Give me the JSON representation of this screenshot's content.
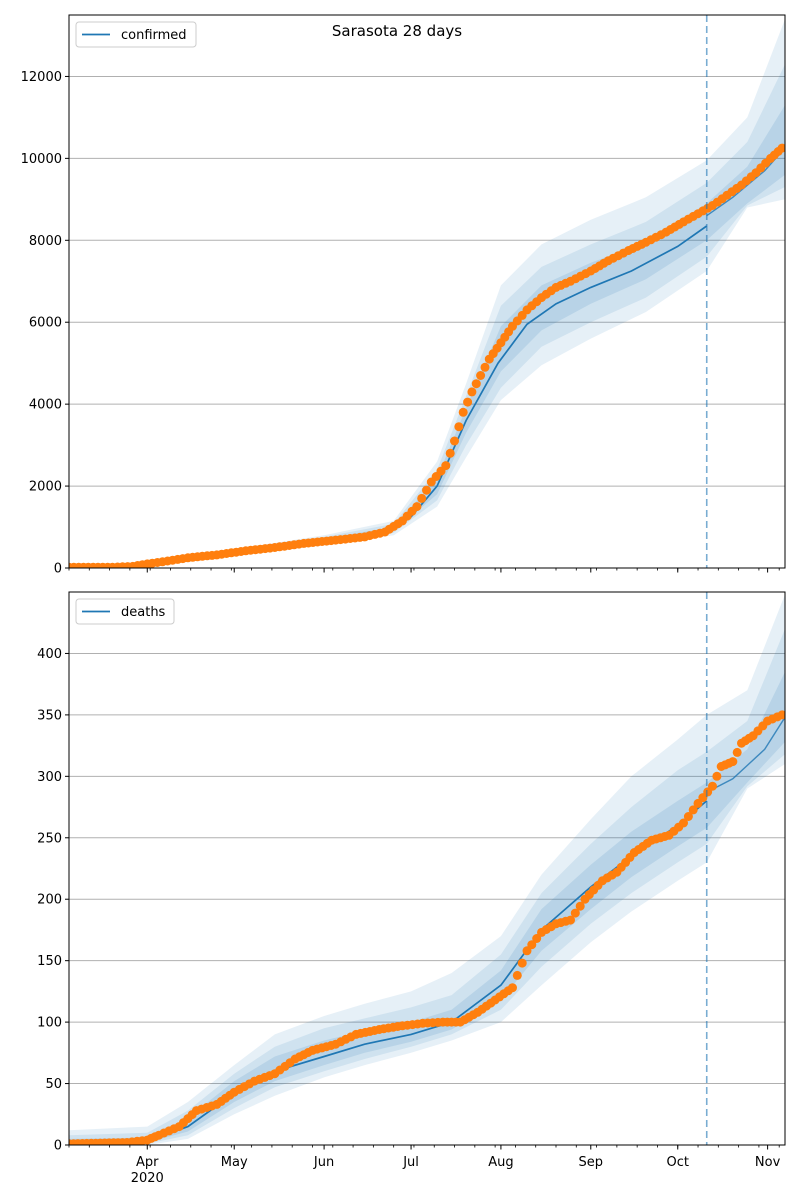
{
  "title": "Sarasota 28 days",
  "colors": {
    "model": "#1f77b4",
    "observed": "#ff7f0e",
    "grid": "#b0b0b0",
    "band": "#1f77b4"
  },
  "chart_data": [
    {
      "type": "line",
      "panel": "top",
      "title": "Sarasota 28 days",
      "legend": [
        "confirmed"
      ],
      "legend_loc": "upper-left",
      "grid": "y",
      "x_start": "2020-03-05",
      "x_end": "2020-11-07",
      "forecast_start": "2020-10-11",
      "x_tick_labels": [
        {
          "date": "2020-04-01",
          "label": "Apr",
          "sub": "2020"
        },
        {
          "date": "2020-05-01",
          "label": "May",
          "sub": ""
        },
        {
          "date": "2020-06-01",
          "label": "Jun",
          "sub": ""
        },
        {
          "date": "2020-07-01",
          "label": "Jul",
          "sub": ""
        },
        {
          "date": "2020-08-01",
          "label": "Aug",
          "sub": ""
        },
        {
          "date": "2020-09-01",
          "label": "Sep",
          "sub": ""
        },
        {
          "date": "2020-10-01",
          "label": "Oct",
          "sub": ""
        },
        {
          "date": "2020-11-01",
          "label": "Nov",
          "sub": ""
        }
      ],
      "ylim": [
        0,
        13500
      ],
      "y_ticks": [
        0,
        2000,
        4000,
        6000,
        8000,
        10000,
        12000
      ],
      "series": [
        {
          "name": "confirmed",
          "kind": "model-median",
          "x": [
            "2020-03-05",
            "2020-03-25",
            "2020-04-15",
            "2020-05-01",
            "2020-05-15",
            "2020-06-01",
            "2020-06-15",
            "2020-06-25",
            "2020-07-01",
            "2020-07-10",
            "2020-07-20",
            "2020-07-31",
            "2020-08-10",
            "2020-08-20",
            "2020-09-01",
            "2020-09-15",
            "2020-10-01",
            "2020-10-11"
          ],
          "y": [
            0,
            50,
            220,
            380,
            530,
            680,
            780,
            950,
            1250,
            2000,
            3600,
            5000,
            5950,
            6450,
            6850,
            7250,
            7850,
            8350
          ]
        },
        {
          "name": "confirmed",
          "kind": "projection",
          "x": [
            "2020-10-11",
            "2020-10-20",
            "2020-10-31",
            "2020-11-07"
          ],
          "y": [
            8600,
            9050,
            9700,
            10250
          ]
        },
        {
          "name": "confirmed",
          "kind": "observed",
          "x": [
            "2020-03-05",
            "2020-03-20",
            "2020-03-27",
            "2020-04-01",
            "2020-04-08",
            "2020-04-15",
            "2020-04-25",
            "2020-05-05",
            "2020-05-15",
            "2020-05-25",
            "2020-06-05",
            "2020-06-15",
            "2020-06-22",
            "2020-06-28",
            "2020-07-03",
            "2020-07-08",
            "2020-07-13",
            "2020-07-16",
            "2020-07-19",
            "2020-07-22",
            "2020-07-25",
            "2020-07-28",
            "2020-08-01",
            "2020-08-05",
            "2020-08-10",
            "2020-08-15",
            "2020-08-20",
            "2020-08-25",
            "2020-09-01",
            "2020-09-07",
            "2020-09-14",
            "2020-09-20",
            "2020-09-27",
            "2020-10-03",
            "2020-10-08",
            "2020-10-13",
            "2020-10-18",
            "2020-10-23",
            "2020-10-28",
            "2020-11-02",
            "2020-11-06"
          ],
          "y": [
            20,
            20,
            40,
            100,
            170,
            250,
            320,
            420,
            500,
            600,
            680,
            760,
            880,
            1150,
            1500,
            2100,
            2500,
            3100,
            3800,
            4300,
            4700,
            5100,
            5500,
            5900,
            6300,
            6600,
            6850,
            7000,
            7250,
            7500,
            7750,
            7950,
            8200,
            8450,
            8650,
            8850,
            9100,
            9350,
            9650,
            10000,
            10250
          ]
        }
      ],
      "bands": {
        "x": [
          "2020-03-05",
          "2020-04-01",
          "2020-05-01",
          "2020-06-01",
          "2020-06-25",
          "2020-07-10",
          "2020-07-20",
          "2020-08-01",
          "2020-08-15",
          "2020-09-01",
          "2020-09-20",
          "2020-10-11",
          "2020-10-25",
          "2020-11-07"
        ],
        "lower95": [
          0,
          20,
          300,
          560,
          800,
          1500,
          2700,
          4100,
          4950,
          5600,
          6250,
          7250,
          8800,
          9000
        ],
        "upper95": [
          0,
          100,
          460,
          800,
          1150,
          2600,
          4500,
          6900,
          7900,
          8500,
          9050,
          9950,
          11000,
          13400
        ],
        "lower80": [
          0,
          30,
          330,
          600,
          860,
          1650,
          3000,
          4400,
          5400,
          6000,
          6600,
          7600,
          8850,
          9300
        ],
        "upper80": [
          0,
          85,
          430,
          760,
          1080,
          2400,
          4200,
          6400,
          7350,
          7900,
          8450,
          9400,
          10400,
          12300
        ],
        "lower50": [
          0,
          40,
          360,
          640,
          900,
          1800,
          3300,
          4800,
          5800,
          6450,
          7050,
          8000,
          8900,
          9600
        ],
        "upper50": [
          0,
          70,
          400,
          720,
          1000,
          2200,
          3900,
          5900,
          6900,
          7450,
          7950,
          8900,
          9800,
          11300
        ]
      }
    },
    {
      "type": "line",
      "panel": "bottom",
      "legend": [
        "deaths"
      ],
      "legend_loc": "upper-left",
      "grid": "y",
      "x_start": "2020-03-05",
      "x_end": "2020-11-07",
      "forecast_start": "2020-10-11",
      "ylim": [
        0,
        450
      ],
      "y_ticks": [
        0,
        50,
        100,
        150,
        200,
        250,
        300,
        350,
        400
      ],
      "series": [
        {
          "name": "deaths",
          "kind": "model-median",
          "x": [
            "2020-03-05",
            "2020-04-01",
            "2020-04-15",
            "2020-05-01",
            "2020-05-15",
            "2020-06-01",
            "2020-06-15",
            "2020-07-01",
            "2020-07-15",
            "2020-08-01",
            "2020-08-15",
            "2020-09-01",
            "2020-09-15",
            "2020-10-01",
            "2020-10-11"
          ],
          "y": [
            0,
            3,
            15,
            42,
            60,
            72,
            82,
            90,
            100,
            130,
            175,
            210,
            235,
            260,
            280
          ]
        },
        {
          "name": "deaths",
          "kind": "projection",
          "x": [
            "2020-10-11",
            "2020-10-20",
            "2020-10-31",
            "2020-11-07"
          ],
          "y": [
            287,
            298,
            322,
            348
          ]
        },
        {
          "name": "deaths",
          "kind": "observed",
          "x": [
            "2020-03-05",
            "2020-03-25",
            "2020-04-01",
            "2020-04-05",
            "2020-04-12",
            "2020-04-18",
            "2020-04-25",
            "2020-05-01",
            "2020-05-08",
            "2020-05-15",
            "2020-05-22",
            "2020-05-28",
            "2020-06-05",
            "2020-06-12",
            "2020-06-20",
            "2020-06-28",
            "2020-07-05",
            "2020-07-12",
            "2020-07-18",
            "2020-07-24",
            "2020-07-30",
            "2020-08-05",
            "2020-08-10",
            "2020-08-15",
            "2020-08-20",
            "2020-08-25",
            "2020-08-30",
            "2020-09-05",
            "2020-09-10",
            "2020-09-16",
            "2020-09-22",
            "2020-09-28",
            "2020-10-03",
            "2020-10-08",
            "2020-10-13",
            "2020-10-16",
            "2020-10-20",
            "2020-10-23",
            "2020-10-27",
            "2020-11-01",
            "2020-11-06"
          ],
          "y": [
            1,
            2,
            4,
            8,
            15,
            28,
            33,
            43,
            52,
            58,
            70,
            77,
            82,
            90,
            94,
            97,
            99,
            100,
            100,
            108,
            118,
            128,
            158,
            173,
            180,
            183,
            200,
            215,
            222,
            238,
            248,
            252,
            262,
            278,
            292,
            308,
            312,
            327,
            333,
            345,
            350
          ]
        }
      ],
      "bands": {
        "x": [
          "2020-03-05",
          "2020-04-01",
          "2020-04-15",
          "2020-05-01",
          "2020-05-15",
          "2020-06-01",
          "2020-06-15",
          "2020-07-01",
          "2020-07-15",
          "2020-08-01",
          "2020-08-15",
          "2020-09-01",
          "2020-09-15",
          "2020-10-01",
          "2020-10-11",
          "2020-10-25",
          "2020-11-07"
        ],
        "lower95": [
          0,
          0,
          5,
          25,
          40,
          55,
          65,
          75,
          85,
          100,
          130,
          165,
          190,
          215,
          230,
          290,
          310
        ],
        "upper95": [
          12,
          15,
          35,
          65,
          90,
          105,
          115,
          125,
          140,
          170,
          220,
          265,
          300,
          330,
          350,
          370,
          448
        ],
        "lower80": [
          0,
          1,
          8,
          30,
          47,
          60,
          70,
          80,
          90,
          110,
          145,
          180,
          205,
          230,
          245,
          292,
          318
        ],
        "upper80": [
          8,
          10,
          28,
          58,
          80,
          95,
          103,
          112,
          122,
          155,
          205,
          245,
          275,
          305,
          320,
          345,
          420
        ],
        "lower50": [
          0,
          2,
          11,
          35,
          52,
          65,
          75,
          84,
          94,
          118,
          158,
          192,
          218,
          243,
          258,
          295,
          328
        ],
        "upper50": [
          5,
          6,
          22,
          52,
          72,
          85,
          93,
          100,
          110,
          142,
          192,
          228,
          255,
          280,
          295,
          322,
          385
        ]
      }
    }
  ]
}
